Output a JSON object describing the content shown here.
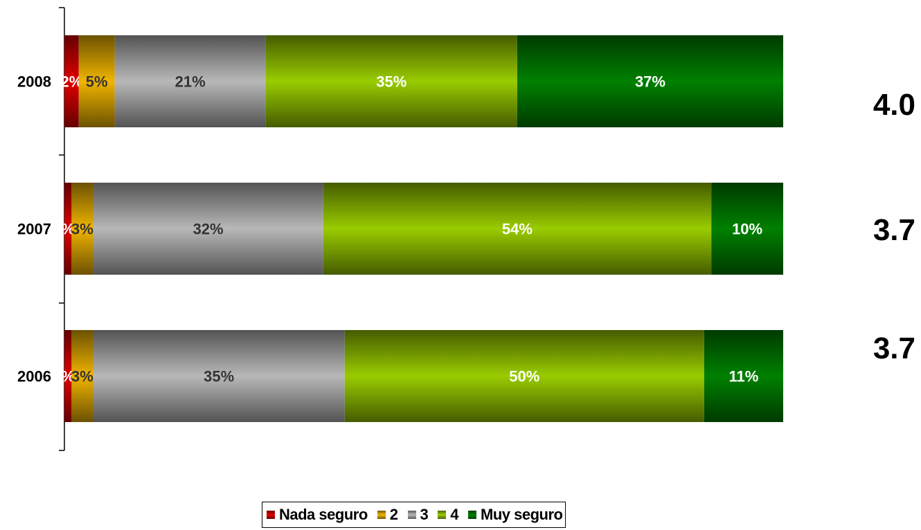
{
  "chart_data": {
    "type": "bar",
    "orientation": "horizontal",
    "stacked": true,
    "percent": true,
    "categories": [
      "2008",
      "2007",
      "2006"
    ],
    "series": [
      {
        "name": "Nada seguro",
        "color": "#e00000",
        "values": [
          2,
          1,
          1
        ],
        "labels": [
          "2%",
          "%",
          "%"
        ]
      },
      {
        "name": "2",
        "color": "#f0b400",
        "values": [
          5,
          3,
          3
        ],
        "labels": [
          "5%",
          "3%",
          "3%"
        ]
      },
      {
        "name": "3",
        "color": "#b8b8b8",
        "values": [
          21,
          32,
          35
        ],
        "labels": [
          "21%",
          "32%",
          "35%"
        ]
      },
      {
        "name": "4",
        "color": "#99cc00",
        "values": [
          35,
          54,
          50
        ],
        "labels": [
          "35%",
          "54%",
          "50%"
        ]
      },
      {
        "name": "Muy seguro",
        "color": "#008000",
        "values": [
          37,
          10,
          11
        ],
        "labels": [
          "37%",
          "10%",
          "11%"
        ]
      }
    ],
    "averages": [
      "4.0",
      "3.7",
      "3.7"
    ],
    "xlim": [
      0,
      100
    ],
    "grid": false,
    "legend_position": "bottom"
  }
}
